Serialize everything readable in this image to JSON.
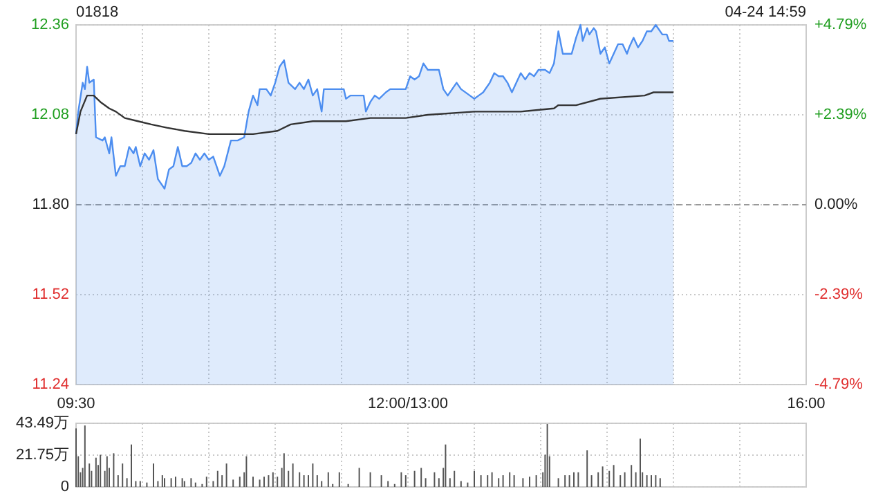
{
  "chart_data": [
    {
      "type": "line",
      "title": "01818",
      "annotations": [
        "04-24 14:59"
      ],
      "categories": [
        "09:30",
        null,
        null,
        null,
        null,
        null,
        null,
        null,
        null,
        null,
        null,
        null,
        null,
        null,
        null,
        null,
        null,
        null,
        null,
        null,
        null,
        null,
        null,
        null,
        null,
        null,
        null,
        null,
        null,
        null,
        null,
        null,
        null,
        null,
        null,
        null,
        null,
        null,
        null,
        null,
        null,
        null,
        null,
        null,
        null,
        null,
        null,
        null,
        null,
        null,
        null,
        null,
        null,
        null,
        null,
        null,
        null,
        null,
        null,
        null,
        null,
        null,
        null,
        null,
        null,
        null,
        null,
        null,
        null,
        null,
        null,
        null,
        null,
        null,
        null,
        null,
        null,
        null,
        null,
        null,
        null,
        null,
        null,
        null,
        null,
        null,
        null,
        null,
        null,
        null,
        null,
        null,
        null,
        null,
        null,
        null,
        null,
        null,
        null,
        null,
        null,
        null,
        null,
        null,
        null,
        null,
        null,
        null,
        null,
        null,
        null,
        null,
        null,
        null,
        null,
        null,
        null,
        null,
        null,
        null,
        null,
        null,
        null,
        null,
        null,
        null,
        null,
        null,
        null,
        null,
        null,
        null,
        null,
        null,
        null,
        null,
        null,
        null,
        null,
        null,
        null,
        null,
        null,
        null,
        null,
        null,
        null,
        null,
        null,
        null,
        "12:00/13:00",
        null,
        null,
        null,
        null,
        null,
        null,
        null,
        null,
        null,
        null,
        null,
        null,
        null,
        null,
        null,
        null,
        null,
        null,
        null,
        null,
        null,
        null,
        null,
        null,
        null,
        null,
        null,
        null,
        null,
        null,
        null,
        null,
        null,
        null,
        null,
        null,
        null,
        null,
        null,
        null,
        null,
        null,
        null,
        null,
        null,
        null,
        null,
        null,
        null,
        null,
        null,
        null,
        null,
        null,
        null,
        null,
        null,
        null,
        null,
        null,
        null,
        null,
        null,
        null,
        null,
        null,
        null,
        null,
        null,
        null,
        null,
        null,
        null,
        null,
        null,
        null,
        null,
        null,
        null,
        null,
        null,
        null,
        null,
        null,
        null,
        null,
        null,
        null,
        null,
        null,
        null,
        null,
        null,
        null,
        null,
        null,
        null,
        null,
        null,
        null,
        null,
        null,
        null,
        null,
        null,
        null,
        null,
        null,
        null,
        null,
        null,
        null,
        null,
        null,
        null,
        null,
        null,
        null,
        null,
        null,
        null,
        null,
        null,
        null,
        null,
        null,
        null,
        null,
        null,
        null,
        null,
        null,
        null,
        null,
        null,
        null,
        null,
        null,
        null,
        null,
        null,
        null,
        null,
        null,
        null,
        null,
        null,
        null,
        null,
        null,
        null,
        null,
        null,
        null,
        null,
        null,
        null,
        null,
        null,
        null,
        null,
        null,
        null,
        null,
        null,
        null,
        null,
        null,
        null,
        null,
        null,
        null,
        null,
        null,
        null,
        null,
        null,
        null,
        null,
        "16:00"
      ],
      "ylim": [
        11.24,
        12.36
      ],
      "y2lim": [
        -4.79,
        4.79
      ],
      "yticks": [
        11.24,
        11.52,
        {
          "value": 11.8,
          "label": "11.80"
        },
        12.08,
        12.36
      ],
      "y2ticks": [
        {
          "value": -4.79,
          "label": "-4.79%"
        },
        {
          "value": -2.39,
          "label": "-2.39%"
        },
        {
          "value": 0,
          "label": "0.00%"
        },
        {
          "value": 2.39,
          "label": "+2.39%"
        },
        {
          "value": 4.79,
          "label": "+4.79%"
        }
      ],
      "grid": true,
      "marker": "none",
      "ref_lines": [
        {
          "axis": "y",
          "value": 11.8,
          "color": "#999999",
          "line_style": "dashed"
        }
      ],
      "series": [
        {
          "type": "area",
          "color": "#4d8ef0",
          "values": [
            12.02,
            12.09,
            null,
            12.18,
            12.16,
            12.23,
            12.18,
            null,
            12.19,
            12.01,
            null,
            null,
            12.0,
            12.01,
            null,
            11.96,
            12.01,
            null,
            11.89,
            null,
            11.92,
            null,
            11.92,
            null,
            11.98,
            null,
            11.96,
            11.98,
            null,
            11.92,
            null,
            11.96,
            null,
            11.94,
            null,
            11.97,
            null,
            11.88,
            null,
            null,
            11.85,
            null,
            11.91,
            null,
            11.92,
            null,
            11.98,
            null,
            11.92,
            null,
            11.92,
            null,
            11.93,
            null,
            11.96,
            null,
            11.94,
            null,
            11.96,
            null,
            11.94,
            null,
            11.95,
            null,
            null,
            11.89,
            null,
            11.92,
            null,
            null,
            12.0,
            null,
            null,
            12.0,
            null,
            null,
            12.01,
            null,
            12.09,
            null,
            12.14,
            null,
            12.11,
            12.16,
            null,
            null,
            12.16,
            null,
            12.14,
            null,
            12.18,
            null,
            12.23,
            null,
            12.25,
            null,
            12.18,
            null,
            null,
            12.16,
            null,
            12.18,
            null,
            12.16,
            null,
            12.19,
            null,
            12.14,
            null,
            12.16,
            null,
            12.09,
            12.16,
            null,
            null,
            null,
            12.16,
            null,
            null,
            null,
            null,
            12.16,
            12.13,
            null,
            12.14,
            null,
            null,
            null,
            null,
            null,
            12.14,
            12.09,
            null,
            12.12,
            null,
            12.14,
            null,
            12.13,
            null,
            null,
            12.15,
            null,
            12.16,
            null,
            null,
            null,
            null,
            null,
            null,
            12.16,
            null,
            12.2,
            null,
            12.19,
            null,
            12.2,
            null,
            12.24,
            null,
            12.22,
            null,
            null,
            null,
            null,
            12.22,
            null,
            12.16,
            null,
            12.14,
            null,
            12.16,
            null,
            12.18,
            null,
            12.16,
            null,
            null,
            null,
            12.14,
            null,
            12.13,
            null,
            12.14,
            null,
            12.15,
            null,
            null,
            12.18,
            null,
            12.21,
            null,
            12.2,
            null,
            12.2,
            null,
            12.18,
            null,
            12.15,
            null,
            12.18,
            null,
            12.21,
            null,
            12.19,
            null,
            12.21,
            null,
            12.2,
            null,
            12.22,
            null,
            null,
            12.22,
            null,
            12.21,
            null,
            12.24,
            null,
            12.34,
            null,
            12.27,
            null,
            null,
            null,
            12.27,
            null,
            12.32,
            null,
            12.36,
            12.31,
            null,
            12.35,
            12.33,
            null,
            12.35,
            12.34,
            null,
            12.27,
            null,
            12.29,
            null,
            12.24,
            null,
            12.27,
            null,
            12.3,
            null,
            12.3,
            null,
            12.27,
            12.29,
            null,
            12.32,
            null,
            12.29,
            null,
            12.31,
            null,
            12.34,
            null,
            12.34,
            null,
            12.36,
            null,
            null,
            12.33,
            null,
            12.33,
            12.31,
            null,
            12.31,
            null,
            null,
            null,
            null,
            null,
            null,
            null,
            null,
            null,
            null,
            null,
            null,
            null,
            null,
            null,
            null,
            null,
            null,
            null,
            null,
            null,
            null,
            null,
            null,
            null,
            null,
            null,
            null,
            null,
            null,
            null,
            null,
            null,
            null,
            null,
            null,
            null,
            null,
            null,
            null,
            null,
            null,
            null,
            null,
            null,
            null,
            null,
            null,
            null,
            null,
            null,
            null,
            null,
            null,
            null,
            null,
            null,
            null,
            null,
            null
          ]
        },
        {
          "color": "#333333",
          "values": [
            12.02,
            null,
            12.09,
            null,
            null,
            12.14,
            null,
            null,
            12.14,
            null,
            null,
            12.12,
            null,
            null,
            null,
            12.1,
            null,
            null,
            12.09,
            null,
            null,
            null,
            12.07,
            null,
            null,
            null,
            null,
            null,
            12.06,
            null,
            null,
            null,
            null,
            null,
            12.05,
            null,
            null,
            null,
            null,
            null,
            null,
            12.04,
            null,
            null,
            null,
            null,
            null,
            null,
            null,
            12.03,
            null,
            null,
            null,
            null,
            null,
            null,
            null,
            null,
            null,
            null,
            12.02,
            null,
            null,
            null,
            null,
            null,
            null,
            null,
            null,
            null,
            null,
            null,
            12.02,
            null,
            null,
            null,
            12.02,
            null,
            null,
            null,
            12.02,
            null,
            null,
            null,
            null,
            null,
            null,
            null,
            null,
            null,
            null,
            12.03,
            null,
            null,
            null,
            null,
            null,
            12.05,
            null,
            null,
            null,
            null,
            null,
            null,
            null,
            null,
            null,
            12.06,
            null,
            null,
            null,
            null,
            null,
            null,
            null,
            null,
            null,
            null,
            null,
            null,
            null,
            null,
            12.06,
            null,
            null,
            null,
            null,
            null,
            null,
            null,
            null,
            null,
            null,
            12.07,
            null,
            null,
            null,
            null,
            null,
            null,
            null,
            null,
            null,
            null,
            null,
            null,
            null,
            null,
            null,
            12.07,
            null,
            null,
            null,
            null,
            null,
            null,
            null,
            null,
            null,
            12.08,
            null,
            null,
            null,
            null,
            null,
            null,
            null,
            null,
            null,
            null,
            null,
            null,
            null,
            null,
            null,
            null,
            null,
            null,
            null,
            null,
            12.09,
            null,
            null,
            null,
            null,
            null,
            null,
            null,
            null,
            null,
            null,
            null,
            null,
            null,
            null,
            null,
            null,
            null,
            null,
            null,
            null,
            12.09,
            null,
            null,
            null,
            null,
            null,
            null,
            null,
            null,
            null,
            null,
            null,
            null,
            null,
            null,
            12.1,
            null,
            12.11,
            null,
            null,
            null,
            null,
            null,
            null,
            null,
            12.11,
            null,
            null,
            null,
            null,
            null,
            null,
            null,
            null,
            null,
            null,
            12.13,
            null,
            null,
            null,
            null,
            null,
            null,
            null,
            null,
            null,
            null,
            null,
            null,
            null,
            null,
            null,
            null,
            null,
            null,
            null,
            12.14,
            null,
            null,
            null,
            12.15,
            null,
            null,
            null,
            null,
            null,
            null,
            null,
            null,
            12.15,
            null,
            null,
            null,
            null,
            null,
            null,
            null,
            null,
            null,
            null,
            null,
            null,
            null,
            null,
            null,
            null,
            null,
            null,
            null,
            null,
            null,
            null,
            null,
            null,
            null,
            null,
            null,
            null,
            null,
            null,
            null,
            null,
            null,
            null,
            null,
            null,
            null,
            null,
            null,
            null,
            null,
            null,
            null,
            null,
            null,
            null,
            null,
            null,
            null,
            null,
            null,
            null,
            null,
            null,
            null,
            null,
            null,
            null,
            null,
            null
          ]
        }
      ]
    },
    {
      "type": "bar",
      "tick_labels": "y",
      "grid": true,
      "ylim": [
        0,
        43.49
      ],
      "categories": [
        null,
        null,
        null,
        null,
        null,
        null,
        null,
        null,
        null,
        null,
        null,
        null,
        null,
        null,
        null,
        null,
        null,
        null,
        null,
        null,
        null,
        null,
        null,
        null,
        null,
        null,
        null,
        null,
        null,
        null,
        null,
        null,
        null,
        null,
        null,
        null,
        null,
        null,
        null,
        null,
        null,
        null,
        null,
        null,
        null,
        null,
        null,
        null,
        null,
        null,
        null,
        null,
        null,
        null,
        null,
        null,
        null,
        null,
        null,
        null,
        null,
        null,
        null,
        null,
        null,
        null,
        null,
        null,
        null,
        null,
        null,
        null,
        null,
        null,
        null,
        null,
        null,
        null,
        null,
        null,
        null,
        null,
        null,
        null,
        null,
        null,
        null,
        null,
        null,
        null,
        null,
        null,
        null,
        null,
        null,
        null,
        null,
        null,
        null,
        null,
        null,
        null,
        null,
        null,
        null,
        null,
        null,
        null,
        null,
        null,
        null,
        null,
        null,
        null,
        null,
        null,
        null,
        null,
        null,
        null,
        null,
        null,
        null,
        null,
        null,
        null,
        null,
        null,
        null,
        null,
        null,
        null,
        null,
        null,
        null,
        null,
        null,
        null,
        null,
        null,
        null,
        null,
        null,
        null,
        null,
        null,
        null,
        null,
        null,
        null,
        null,
        null,
        null,
        null,
        null,
        null,
        null,
        null,
        null,
        null,
        null,
        null,
        null,
        null,
        null,
        null,
        null,
        null,
        null,
        null,
        null,
        null,
        null,
        null,
        null,
        null,
        null,
        null,
        null,
        null,
        null,
        null,
        null,
        null,
        null,
        null,
        null,
        null,
        null,
        null,
        null,
        null,
        null,
        null,
        null,
        null,
        null,
        null,
        null,
        null,
        null,
        null,
        null,
        null,
        null,
        null,
        null,
        null,
        null,
        null,
        null,
        null,
        null,
        null,
        null,
        null,
        null,
        null,
        null,
        null,
        null,
        null,
        null,
        null,
        null,
        null,
        null,
        null,
        null,
        null,
        null,
        null,
        null,
        null,
        null,
        null,
        null,
        null,
        null,
        null,
        null,
        null,
        null,
        null,
        null,
        null,
        null,
        null,
        null,
        null,
        null,
        null,
        null,
        null,
        null,
        null,
        null,
        null,
        null,
        null,
        null,
        null,
        null,
        null,
        null,
        null,
        null,
        null,
        null,
        null,
        null,
        null,
        null,
        null,
        null,
        null,
        null,
        null,
        null,
        null,
        null,
        null,
        null,
        null,
        null,
        null,
        null,
        null,
        null,
        null,
        null,
        null,
        null,
        null,
        null,
        null,
        null,
        null,
        null,
        null,
        null,
        null,
        null,
        null,
        null,
        null,
        null,
        null,
        null,
        null,
        null,
        null,
        null,
        null,
        null,
        null,
        null,
        null,
        null,
        null,
        null,
        null,
        null,
        null,
        null,
        null,
        null,
        null,
        null,
        null,
        null
      ],
      "yticks": [
        0,
        {
          "value": 21.75,
          "label": "21.75万"
        },
        {
          "value": 43.49,
          "label": "43.49万"
        }
      ],
      "series": [
        {
          "color": "#555555",
          "values": [
            40,
            21,
            10,
            13,
            42,
            null,
            16,
            11,
            null,
            20,
            15,
            22,
            null,
            11,
            21,
            13,
            null,
            23,
            null,
            8,
            null,
            16,
            null,
            6,
            null,
            29,
            null,
            4,
            null,
            4,
            null,
            null,
            3,
            null,
            null,
            16,
            null,
            4,
            null,
            8,
            6,
            null,
            null,
            6,
            null,
            7,
            null,
            null,
            6,
            4,
            null,
            null,
            6,
            null,
            3,
            null,
            null,
            2,
            null,
            7,
            null,
            null,
            4,
            null,
            11,
            null,
            8,
            null,
            16,
            null,
            null,
            5,
            null,
            null,
            7,
            null,
            10,
            21,
            null,
            null,
            7,
            null,
            null,
            5,
            null,
            7,
            null,
            8,
            null,
            10,
            null,
            7,
            null,
            13,
            23,
            null,
            11,
            null,
            16,
            null,
            null,
            10,
            null,
            8,
            null,
            8,
            null,
            16,
            null,
            8,
            null,
            4,
            null,
            null,
            10,
            null,
            2,
            null,
            null,
            10,
            null,
            null,
            null,
            2,
            null,
            null,
            null,
            null,
            13,
            null,
            null,
            null,
            null,
            10,
            null,
            null,
            null,
            null,
            8,
            null,
            null,
            4,
            null,
            null,
            2,
            null,
            null,
            10,
            null,
            8,
            null,
            null,
            null,
            11,
            null,
            null,
            13,
            null,
            6,
            null,
            null,
            null,
            10,
            null,
            6,
            null,
            13,
            29,
            null,
            6,
            null,
            11,
            null,
            null,
            4,
            null,
            null,
            3,
            null,
            null,
            11,
            null,
            null,
            8,
            null,
            null,
            8,
            null,
            10,
            null,
            null,
            6,
            null,
            8,
            null,
            null,
            10,
            null,
            8,
            null,
            null,
            null,
            6,
            null,
            null,
            7,
            null,
            null,
            8,
            null,
            null,
            10,
            22,
            43,
            21,
            null,
            null,
            null,
            6,
            null,
            null,
            8,
            null,
            8,
            null,
            10,
            null,
            10,
            null,
            null,
            null,
            25,
            null,
            8,
            null,
            null,
            10,
            null,
            14,
            null,
            null,
            11,
            null,
            15,
            null,
            null,
            8,
            null,
            10,
            null,
            null,
            15,
            null,
            10,
            null,
            33,
            10,
            null,
            8,
            null,
            8,
            null,
            8,
            null,
            6,
            null,
            null,
            null,
            null,
            null,
            null,
            null,
            null,
            null,
            null,
            null,
            null,
            null,
            null,
            null,
            null,
            null,
            null,
            null,
            null,
            null,
            null,
            null,
            null,
            null,
            null,
            null,
            null,
            null,
            null,
            null,
            null,
            null,
            null,
            null,
            null,
            null,
            null,
            null,
            null,
            null,
            null,
            null,
            null,
            null,
            null,
            null,
            null,
            null,
            null,
            null,
            null,
            null,
            null,
            null,
            null,
            null,
            null,
            null,
            null,
            null,
            null,
            null,
            null,
            null,
            null
          ]
        }
      ]
    }
  ]
}
